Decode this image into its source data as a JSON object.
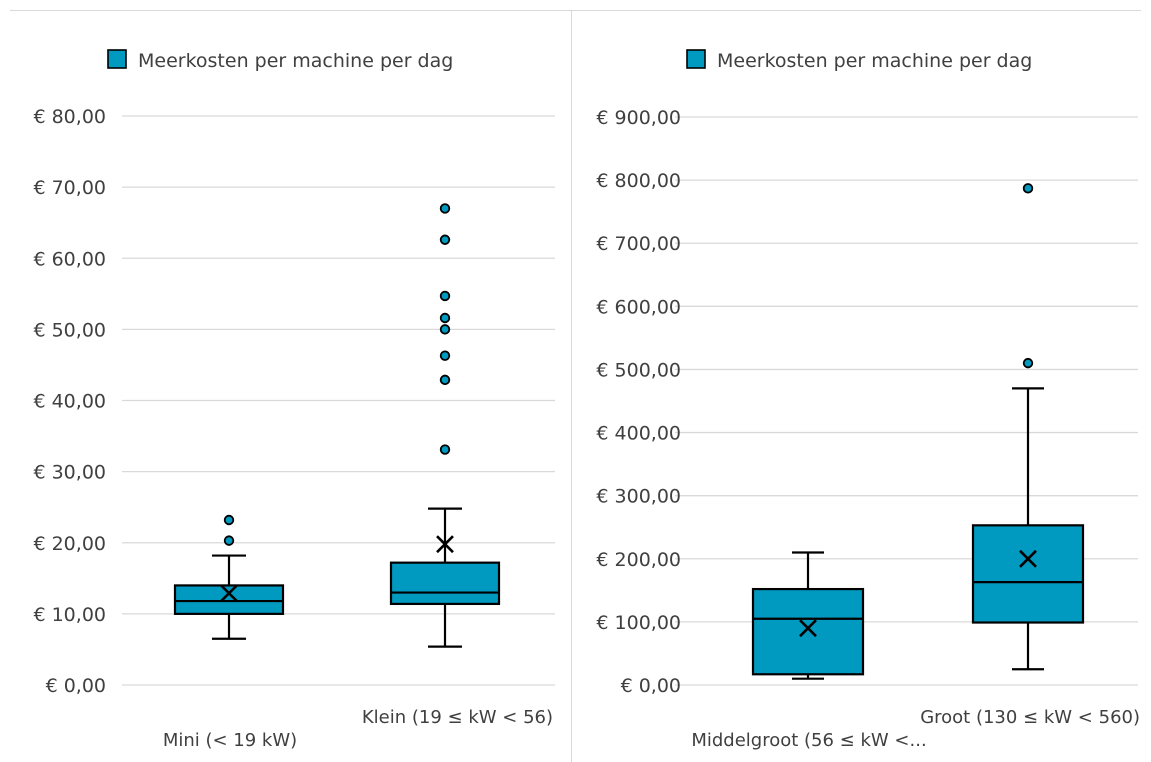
{
  "chart_data": [
    {
      "type": "box",
      "legend": {
        "label": "Meerkosten per machine per dag",
        "color": "#0099c0",
        "position": "top-left"
      },
      "ylim": [
        0,
        80
      ],
      "yticks": [
        0,
        10,
        20,
        30,
        40,
        50,
        60,
        70,
        80
      ],
      "ytick_labels": [
        "€ 0,00",
        "€ 10,00",
        "€ 20,00",
        "€ 30,00",
        "€ 40,00",
        "€ 50,00",
        "€ 60,00",
        "€ 70,00",
        "€ 80,00"
      ],
      "grid": true,
      "categories": [
        "Mini (< 19 kW)",
        "Klein (19 ≤ kW < 56)"
      ],
      "boxes": [
        {
          "category": "Mini (< 19 kW)",
          "whisker_low": 6.5,
          "q1": 10.0,
          "median": 11.8,
          "q3": 14.0,
          "whisker_high": 18.2,
          "mean": 12.9,
          "outliers": [
            20.3,
            23.2
          ]
        },
        {
          "category": "Klein (19 ≤ kW < 56)",
          "whisker_low": 5.4,
          "q1": 11.4,
          "median": 13.0,
          "q3": 17.2,
          "whisker_high": 24.8,
          "mean": 19.8,
          "outliers": [
            33.1,
            42.9,
            46.3,
            50.0,
            51.6,
            54.7,
            62.6,
            67.0
          ]
        }
      ]
    },
    {
      "type": "box",
      "legend": {
        "label": "Meerkosten per machine per dag",
        "color": "#0099c0",
        "position": "top-left"
      },
      "ylim": [
        0,
        900
      ],
      "yticks": [
        0,
        100,
        200,
        300,
        400,
        500,
        600,
        700,
        800,
        900
      ],
      "ytick_labels": [
        "€ 0,00",
        "€ 100,00",
        "€ 200,00",
        "€ 300,00",
        "€ 400,00",
        "€ 500,00",
        "€ 600,00",
        "€ 700,00",
        "€ 800,00",
        "€ 900,00"
      ],
      "grid": true,
      "categories": [
        "Middelgroot (56 ≤ kW <...",
        "Groot (130 ≤ kW < 560)"
      ],
      "boxes": [
        {
          "category": "Middelgroot (56 ≤ kW <...",
          "whisker_low": 10,
          "q1": 17,
          "median": 105,
          "q3": 152,
          "whisker_high": 210,
          "mean": 90,
          "outliers": []
        },
        {
          "category": "Groot (130 ≤ kW < 560)",
          "whisker_low": 25,
          "q1": 99,
          "median": 163,
          "q3": 253,
          "whisker_high": 470,
          "mean": 200,
          "outliers": [
            510,
            787
          ]
        }
      ]
    }
  ]
}
